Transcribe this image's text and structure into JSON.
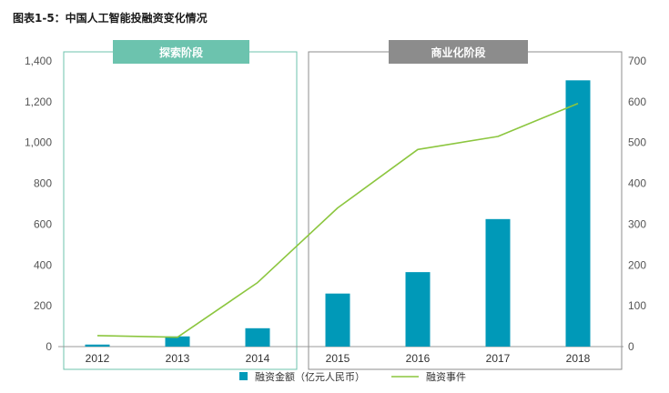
{
  "title": "图表1-5：中国人工智能投融资变化情况",
  "colors": {
    "bar": "#0099b8",
    "line": "#8cc63f",
    "phase1": "#6cc3ae",
    "phase2": "#8c8c8c",
    "axis": "#999999"
  },
  "phases": [
    {
      "label": "探索阶段",
      "categories": [
        "2012",
        "2013",
        "2014"
      ]
    },
    {
      "label": "商业化阶段",
      "categories": [
        "2015",
        "2016",
        "2017",
        "2018"
      ]
    }
  ],
  "legend": {
    "bar_label": "融资金额（亿元人民币）",
    "line_label": "融资事件"
  },
  "chart_data": {
    "type": "bar",
    "categories": [
      "2012",
      "2013",
      "2014",
      "2015",
      "2016",
      "2017",
      "2018"
    ],
    "series": [
      {
        "name": "融资金额（亿元人民币）",
        "type": "bar",
        "axis": "left",
        "values": [
          10,
          50,
          90,
          260,
          365,
          625,
          1305
        ]
      },
      {
        "name": "融资事件",
        "type": "line",
        "axis": "right",
        "values": [
          27,
          23,
          157,
          340,
          483,
          515,
          596
        ]
      }
    ],
    "ylim_left": [
      0,
      1400
    ],
    "yticks_left": [
      "0",
      "200",
      "400",
      "600",
      "800",
      "1,000",
      "1,200",
      "1,400"
    ],
    "ylim_right": [
      0,
      700
    ],
    "yticks_right": [
      "0",
      "100",
      "200",
      "300",
      "400",
      "500",
      "600",
      "700"
    ],
    "grid": false,
    "legend_position": "bottom"
  }
}
